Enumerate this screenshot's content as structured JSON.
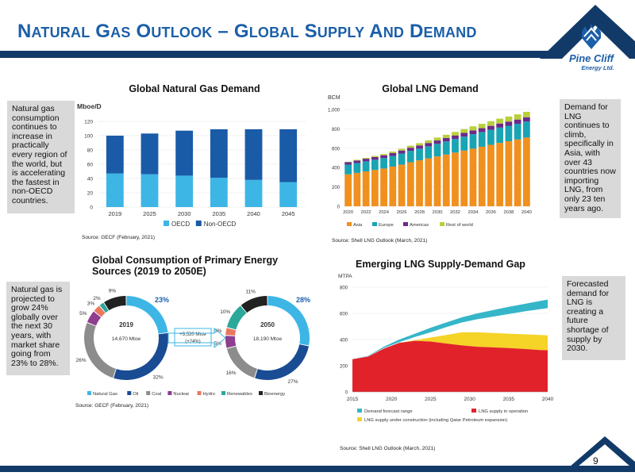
{
  "slide": {
    "title_words": [
      {
        "first": "N",
        "rest": "ATURAL"
      },
      {
        "first": "G",
        "rest": "AS"
      },
      {
        "first": "O",
        "rest": "UTLOOK"
      },
      {
        "first": "–",
        "rest": ""
      },
      {
        "first": "G",
        "rest": "LOBAL"
      },
      {
        "first": "S",
        "rest": "UPPLY"
      },
      {
        "first": "A",
        "rest": "ND"
      },
      {
        "first": "D",
        "rest": "EMAND"
      }
    ],
    "page_number": "9",
    "logo": {
      "line1": "Pine Cliff",
      "line2": "Energy Ltd."
    },
    "colors": {
      "navy": "#123a68",
      "title_blue": "#1b5fa8",
      "note_gray": "#d9d9d9"
    }
  },
  "notes": {
    "demand": "Natural gas consumption continues to increase in practically every region of the world, but is accelerating the fastest in non-OECD countries.",
    "lng": "Demand for LNG continues to climb, specifically in Asia, with over 43 countries now importing LNG, from only 23 ten years ago.",
    "primary": "Natural gas is projected to grow 24% globally over the next 30 years, with market share going from 23% to 28%.",
    "gap": "Forecasted demand for LNG is creating a future shortage of supply by 2030."
  },
  "sources": {
    "demand": "Source: GECF (February, 2021)",
    "lng": "Source: Shell LNG Outlook (March, 2021)",
    "primary": "Source: GECF (February, 2021)",
    "gap": "Source: Shell LNG Outlook (March, 2021)"
  },
  "chart_data": [
    {
      "id": "gas-demand",
      "type": "bar",
      "title": "Global Natural Gas Demand",
      "ylabel": "Mboe/D",
      "categories": [
        "2019",
        "2025",
        "2030",
        "2035",
        "2040",
        "2045"
      ],
      "series": [
        {
          "name": "OECD",
          "color": "#3db6e6",
          "values": [
            47,
            46,
            44,
            41,
            38,
            35
          ]
        },
        {
          "name": "Non-OECD",
          "color": "#1a5ba8",
          "values": [
            53,
            57,
            63,
            68,
            71,
            74
          ]
        }
      ],
      "ylim": [
        0,
        120
      ],
      "yticks": [
        0,
        20,
        40,
        60,
        80,
        100,
        120
      ],
      "stacked": true,
      "legend": "bottom"
    },
    {
      "id": "lng-demand",
      "type": "bar",
      "title": "Global LNG Demand",
      "ylabel": "BCM",
      "categories": [
        "2020",
        "2021",
        "2022",
        "2023",
        "2024",
        "2025",
        "2026",
        "2027",
        "2028",
        "2029",
        "2030",
        "2031",
        "2032",
        "2033",
        "2034",
        "2035",
        "2036",
        "2037",
        "2038",
        "2039",
        "2040"
      ],
      "xtick_labels": [
        "2020",
        "2022",
        "2024",
        "2026",
        "2028",
        "2030",
        "2032",
        "2034",
        "2036",
        "2038",
        "2040"
      ],
      "series": [
        {
          "name": "Asia",
          "color": "#f0901e",
          "values": [
            330,
            345,
            360,
            375,
            390,
            410,
            430,
            455,
            475,
            495,
            515,
            535,
            555,
            575,
            595,
            615,
            635,
            655,
            672,
            690,
            710
          ]
        },
        {
          "name": "Europe",
          "color": "#19a4b4",
          "values": [
            100,
            102,
            104,
            106,
            108,
            110,
            115,
            118,
            120,
            125,
            130,
            135,
            140,
            145,
            150,
            152,
            155,
            158,
            160,
            162,
            165
          ]
        },
        {
          "name": "Americas",
          "color": "#6b2a8a",
          "values": [
            25,
            26,
            27,
            28,
            29,
            30,
            31,
            32,
            33,
            34,
            35,
            36,
            37,
            38,
            39,
            40,
            41,
            42,
            43,
            44,
            45
          ]
        },
        {
          "name": "Rest of world",
          "color": "#b9cf3a",
          "values": [
            5,
            7,
            9,
            11,
            13,
            15,
            18,
            21,
            24,
            27,
            30,
            33,
            36,
            39,
            42,
            45,
            48,
            50,
            52,
            54,
            56
          ]
        }
      ],
      "ylim": [
        0,
        1000
      ],
      "yticks": [
        0,
        200,
        400,
        600,
        800,
        1000
      ],
      "ytick_labels": [
        "0",
        "200",
        "400",
        "600",
        "800",
        "1,000"
      ],
      "stacked": true,
      "legend": "bottom"
    },
    {
      "id": "primary-energy",
      "type": "pie",
      "title": "Global Consumption of Primary Energy Sources (2019 to 2050E)",
      "categories": [
        "Natural Gas",
        "Oil",
        "Coal",
        "Nuclear",
        "Hydro",
        "Renewables",
        "Bioenergy"
      ],
      "colors": [
        "#3db6e6",
        "#1a4c94",
        "#8c8c8c",
        "#8e3d8f",
        "#e8785f",
        "#2ba89a",
        "#222222"
      ],
      "series": [
        {
          "name": "2019",
          "total": "14,670 Mtoe",
          "values": [
            23,
            32,
            26,
            5,
            3,
            2,
            9
          ],
          "labels": [
            "23%",
            "32%",
            "26%",
            "5%",
            "3%",
            "2%",
            "9%"
          ]
        },
        {
          "name": "2050",
          "total": "18,190 Mtoe",
          "values": [
            28,
            27,
            16,
            5,
            3,
            10,
            11
          ],
          "labels": [
            "28%",
            "27%",
            "16%",
            "5%",
            "3%",
            "10%",
            "11%"
          ]
        }
      ],
      "annotation": {
        "line1": "+3,520 Mtoe",
        "line2": "(+24%)"
      },
      "legend": "bottom"
    },
    {
      "id": "lng-gap",
      "type": "area",
      "title": "Emerging LNG Supply-Demand Gap",
      "ylabel": "MTPA",
      "x": [
        2015,
        2017,
        2019,
        2021,
        2023,
        2025,
        2027,
        2029,
        2031,
        2033,
        2035,
        2037,
        2039,
        2040
      ],
      "xticks": [
        2015,
        2020,
        2025,
        2030,
        2035,
        2040
      ],
      "series": [
        {
          "name": "LNG supply in operation",
          "color": "#e1222a",
          "values": [
            250,
            270,
            330,
            375,
            390,
            385,
            370,
            355,
            345,
            340,
            335,
            328,
            320,
            318
          ]
        },
        {
          "name": "LNG supply under construction (including Qatar Petroleum expansion)",
          "color": "#f5d327",
          "values": [
            250,
            270,
            330,
            375,
            395,
            415,
            435,
            455,
            455,
            450,
            445,
            440,
            435,
            432
          ]
        },
        {
          "name": "Demand forecast range",
          "color": "#35b6c8",
          "lower": [
            250,
            272,
            335,
            380,
            420,
            455,
            495,
            530,
            555,
            575,
            595,
            615,
            632,
            640
          ],
          "upper": [
            250,
            275,
            345,
            400,
            445,
            490,
            530,
            570,
            600,
            625,
            650,
            672,
            695,
            705
          ]
        }
      ],
      "ylim": [
        0,
        800
      ],
      "yticks": [
        0,
        200,
        400,
        600,
        800
      ],
      "legend": "bottom"
    }
  ]
}
